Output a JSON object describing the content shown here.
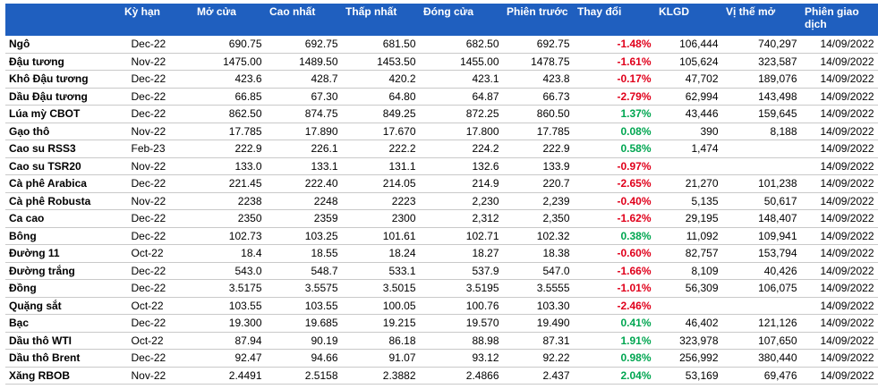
{
  "headers": {
    "name": "",
    "term": "Kỳ hạn",
    "open": "Mở cửa",
    "high": "Cao nhất",
    "low": "Thấp nhất",
    "close": "Đóng cửa",
    "prev": "Phiên trước",
    "change": "Thay đổi",
    "volume": "KLGD",
    "open_interest": "Vị thế mở",
    "date": "Phiên giao dịch"
  },
  "colors": {
    "header_bg": "#1f5fbf",
    "negative": "#e0001b",
    "positive": "#00a651"
  },
  "rows": [
    {
      "name": "Ngô",
      "term": "Dec-22",
      "open": "690.75",
      "high": "692.75",
      "low": "681.50",
      "close": "682.50",
      "prev": "692.75",
      "change": "-1.48%",
      "dir": "neg",
      "volume": "106,444",
      "oi": "740,297",
      "date": "14/09/2022"
    },
    {
      "name": "Đậu tương",
      "term": "Nov-22",
      "open": "1475.00",
      "high": "1489.50",
      "low": "1453.50",
      "close": "1455.00",
      "prev": "1478.75",
      "change": "-1.61%",
      "dir": "neg",
      "volume": "105,624",
      "oi": "323,587",
      "date": "14/09/2022"
    },
    {
      "name": "Khô Đậu tương",
      "term": "Dec-22",
      "open": "423.6",
      "high": "428.7",
      "low": "420.2",
      "close": "423.1",
      "prev": "423.8",
      "change": "-0.17%",
      "dir": "neg",
      "volume": "47,702",
      "oi": "189,076",
      "date": "14/09/2022"
    },
    {
      "name": "Dầu Đậu tương",
      "term": "Dec-22",
      "open": "66.85",
      "high": "67.30",
      "low": "64.80",
      "close": "64.87",
      "prev": "66.73",
      "change": "-2.79%",
      "dir": "neg",
      "volume": "62,994",
      "oi": "143,498",
      "date": "14/09/2022"
    },
    {
      "name": "Lúa mỳ CBOT",
      "term": "Dec-22",
      "open": "862.50",
      "high": "874.75",
      "low": "849.25",
      "close": "872.25",
      "prev": "860.50",
      "change": "1.37%",
      "dir": "pos",
      "volume": "43,446",
      "oi": "159,645",
      "date": "14/09/2022"
    },
    {
      "name": "Gạo thô",
      "term": "Nov-22",
      "open": "17.785",
      "high": "17.890",
      "low": "17.670",
      "close": "17.800",
      "prev": "17.785",
      "change": "0.08%",
      "dir": "pos",
      "volume": "390",
      "oi": "8,188",
      "date": "14/09/2022"
    },
    {
      "name": "Cao su RSS3",
      "term": "Feb-23",
      "open": "222.9",
      "high": "226.1",
      "low": "222.2",
      "close": "224.2",
      "prev": "222.9",
      "change": "0.58%",
      "dir": "pos",
      "volume": "1,474",
      "oi": "",
      "date": "14/09/2022"
    },
    {
      "name": "Cao su TSR20",
      "term": "Nov-22",
      "open": "133.0",
      "high": "133.1",
      "low": "131.1",
      "close": "132.6",
      "prev": "133.9",
      "change": "-0.97%",
      "dir": "neg",
      "volume": "",
      "oi": "",
      "date": "14/09/2022"
    },
    {
      "name": "Cà phê Arabica",
      "term": "Dec-22",
      "open": "221.45",
      "high": "222.40",
      "low": "214.05",
      "close": "214.9",
      "prev": "220.7",
      "change": "-2.65%",
      "dir": "neg",
      "volume": "21,270",
      "oi": "101,238",
      "date": "14/09/2022"
    },
    {
      "name": "Cà phê Robusta",
      "term": "Nov-22",
      "open": "2238",
      "high": "2248",
      "low": "2223",
      "close": "2,230",
      "prev": "2,239",
      "change": "-0.40%",
      "dir": "neg",
      "volume": "5,135",
      "oi": "50,617",
      "date": "14/09/2022"
    },
    {
      "name": "Ca cao",
      "term": "Dec-22",
      "open": "2350",
      "high": "2359",
      "low": "2300",
      "close": "2,312",
      "prev": "2,350",
      "change": "-1.62%",
      "dir": "neg",
      "volume": "29,195",
      "oi": "148,407",
      "date": "14/09/2022"
    },
    {
      "name": "Bông",
      "term": "Dec-22",
      "open": "102.73",
      "high": "103.25",
      "low": "101.61",
      "close": "102.71",
      "prev": "102.32",
      "change": "0.38%",
      "dir": "pos",
      "volume": "11,092",
      "oi": "109,941",
      "date": "14/09/2022"
    },
    {
      "name": "Đường 11",
      "term": "Oct-22",
      "open": "18.4",
      "high": "18.55",
      "low": "18.24",
      "close": "18.27",
      "prev": "18.38",
      "change": "-0.60%",
      "dir": "neg",
      "volume": "82,757",
      "oi": "153,794",
      "date": "14/09/2022"
    },
    {
      "name": "Đường trắng",
      "term": "Dec-22",
      "open": "543.0",
      "high": "548.7",
      "low": "533.1",
      "close": "537.9",
      "prev": "547.0",
      "change": "-1.66%",
      "dir": "neg",
      "volume": "8,109",
      "oi": "40,426",
      "date": "14/09/2022"
    },
    {
      "name": "Đồng",
      "term": "Dec-22",
      "open": "3.5175",
      "high": "3.5575",
      "low": "3.5015",
      "close": "3.5195",
      "prev": "3.5555",
      "change": "-1.01%",
      "dir": "neg",
      "volume": "56,309",
      "oi": "106,075",
      "date": "14/09/2022"
    },
    {
      "name": "Quặng sắt",
      "term": "Oct-22",
      "open": "103.55",
      "high": "103.55",
      "low": "100.05",
      "close": "100.76",
      "prev": "103.30",
      "change": "-2.46%",
      "dir": "neg",
      "volume": "",
      "oi": "",
      "date": "14/09/2022"
    },
    {
      "name": "Bạc",
      "term": "Dec-22",
      "open": "19.300",
      "high": "19.685",
      "low": "19.215",
      "close": "19.570",
      "prev": "19.490",
      "change": "0.41%",
      "dir": "pos",
      "volume": "46,402",
      "oi": "121,126",
      "date": "14/09/2022"
    },
    {
      "name": "Dầu thô WTI",
      "term": "Oct-22",
      "open": "87.94",
      "high": "90.19",
      "low": "86.18",
      "close": "88.98",
      "prev": "87.31",
      "change": "1.91%",
      "dir": "pos",
      "volume": "323,978",
      "oi": "107,650",
      "date": "14/09/2022"
    },
    {
      "name": "Dầu thô Brent",
      "term": "Dec-22",
      "open": "92.47",
      "high": "94.66",
      "low": "91.07",
      "close": "93.12",
      "prev": "92.22",
      "change": "0.98%",
      "dir": "pos",
      "volume": "256,992",
      "oi": "380,440",
      "date": "14/09/2022"
    },
    {
      "name": "Xăng RBOB",
      "term": "Nov-22",
      "open": "2.4491",
      "high": "2.5158",
      "low": "2.3882",
      "close": "2.4866",
      "prev": "2.437",
      "change": "2.04%",
      "dir": "pos",
      "volume": "53,169",
      "oi": "69,476",
      "date": "14/09/2022"
    }
  ]
}
